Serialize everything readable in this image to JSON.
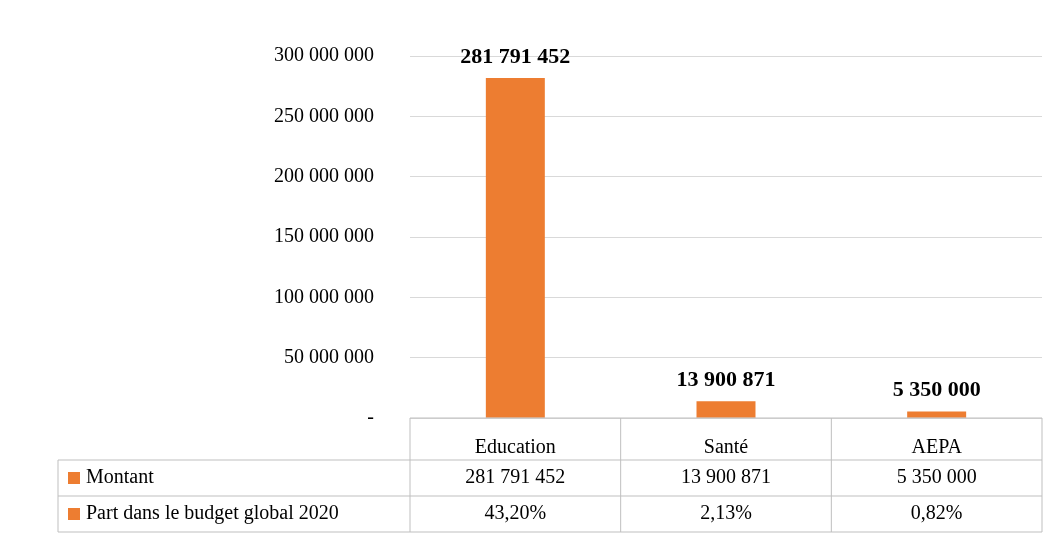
{
  "chart_data": {
    "type": "bar",
    "categories": [
      "Education",
      "Santé",
      "AEPA"
    ],
    "series": [
      {
        "name": "Montant",
        "color": "#ed7d31",
        "values": [
          281791452,
          13900871,
          5350000
        ],
        "value_labels": [
          "281 791 452",
          "13 900 871",
          "5 350 000"
        ]
      },
      {
        "name": "Part dans le budget global 2020",
        "color": "#ed7d31",
        "values": [
          43.2,
          2.13,
          0.82
        ],
        "value_labels": [
          "43,20%",
          "2,13%",
          "0,82%"
        ]
      }
    ],
    "ylim": [
      0,
      300000000
    ],
    "yticks": [
      {
        "value": 0,
        "label": "-"
      },
      {
        "value": 50000000,
        "label": "50 000 000"
      },
      {
        "value": 100000000,
        "label": "100 000 000"
      },
      {
        "value": 150000000,
        "label": "150 000 000"
      },
      {
        "value": 200000000,
        "label": "200 000 000"
      },
      {
        "value": 250000000,
        "label": "250 000 000"
      },
      {
        "value": 300000000,
        "label": "300 000 000"
      }
    ],
    "grid": "y",
    "legend": "bottom"
  }
}
